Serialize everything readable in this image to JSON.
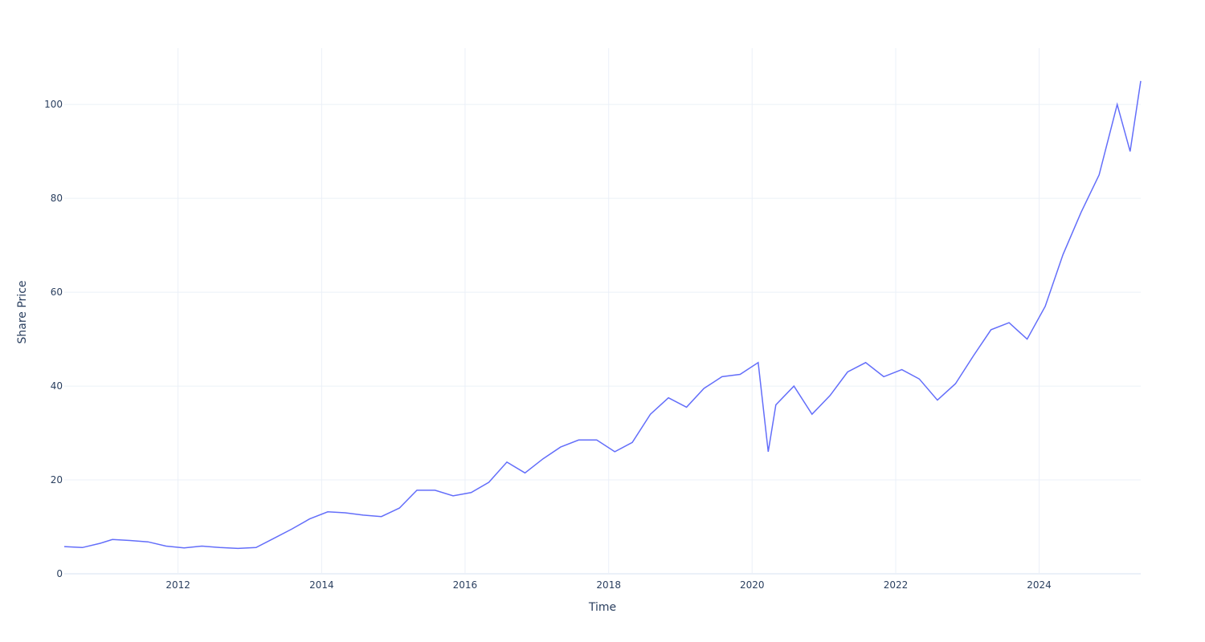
{
  "chart_data": {
    "type": "line",
    "title": "",
    "xlabel": "Time",
    "ylabel": "Share Price",
    "grid": true,
    "legend": "none",
    "line_color": "#636efa",
    "xlim": [
      "2010-06-01",
      "2025-06-01"
    ],
    "ylim": [
      0,
      112
    ],
    "x_ticks": [
      "2012",
      "2014",
      "2016",
      "2018",
      "2020",
      "2022",
      "2024"
    ],
    "y_ticks": [
      "0",
      "20",
      "40",
      "60",
      "80",
      "100"
    ],
    "series": [
      {
        "x": [
          "2010-06-01",
          "2010-09-01",
          "2010-12-01",
          "2011-02-01",
          "2011-05-01",
          "2011-08-01",
          "2011-11-01",
          "2012-02-01",
          "2012-05-01",
          "2012-08-01",
          "2012-11-01",
          "2013-02-01",
          "2013-05-01",
          "2013-08-01",
          "2013-11-01",
          "2014-02-01",
          "2014-05-01",
          "2014-08-01",
          "2014-11-01",
          "2015-02-01",
          "2015-05-01",
          "2015-08-01",
          "2015-11-01",
          "2016-02-01",
          "2016-05-01",
          "2016-08-01",
          "2016-11-01",
          "2017-02-01",
          "2017-05-01",
          "2017-08-01",
          "2017-11-01",
          "2018-02-01",
          "2018-05-01",
          "2018-08-01",
          "2018-11-01",
          "2019-02-01",
          "2019-05-01",
          "2019-08-01",
          "2019-11-01",
          "2020-02-01",
          "2020-03-23",
          "2020-05-01",
          "2020-08-01",
          "2020-11-01",
          "2021-02-01",
          "2021-05-01",
          "2021-08-01",
          "2021-11-01",
          "2022-02-01",
          "2022-05-01",
          "2022-08-01",
          "2022-11-01",
          "2023-02-01",
          "2023-05-01",
          "2023-08-01",
          "2023-11-01",
          "2024-02-01",
          "2024-05-01",
          "2024-08-01",
          "2024-11-01",
          "2025-02-01",
          "2025-04-08",
          "2025-06-01"
        ],
        "values": [
          5.8,
          5.6,
          6.5,
          7.3,
          7.1,
          6.8,
          5.9,
          5.5,
          5.9,
          5.6,
          5.4,
          5.6,
          7.5,
          9.5,
          11.7,
          13.2,
          13.0,
          12.5,
          12.2,
          14.0,
          17.8,
          17.8,
          16.6,
          17.3,
          19.5,
          23.8,
          21.5,
          24.5,
          27.0,
          28.5,
          28.5,
          26.0,
          28.0,
          34.0,
          37.5,
          35.5,
          39.5,
          42.0,
          42.5,
          45.0,
          26.0,
          36.0,
          40.0,
          34.0,
          38.0,
          43.0,
          45.0,
          42.0,
          43.5,
          41.5,
          37.0,
          40.5,
          46.5,
          52.0,
          53.5,
          50.0,
          57.0,
          68.0,
          77.0,
          85.0,
          100.0,
          90.0,
          105.0
        ]
      }
    ]
  }
}
